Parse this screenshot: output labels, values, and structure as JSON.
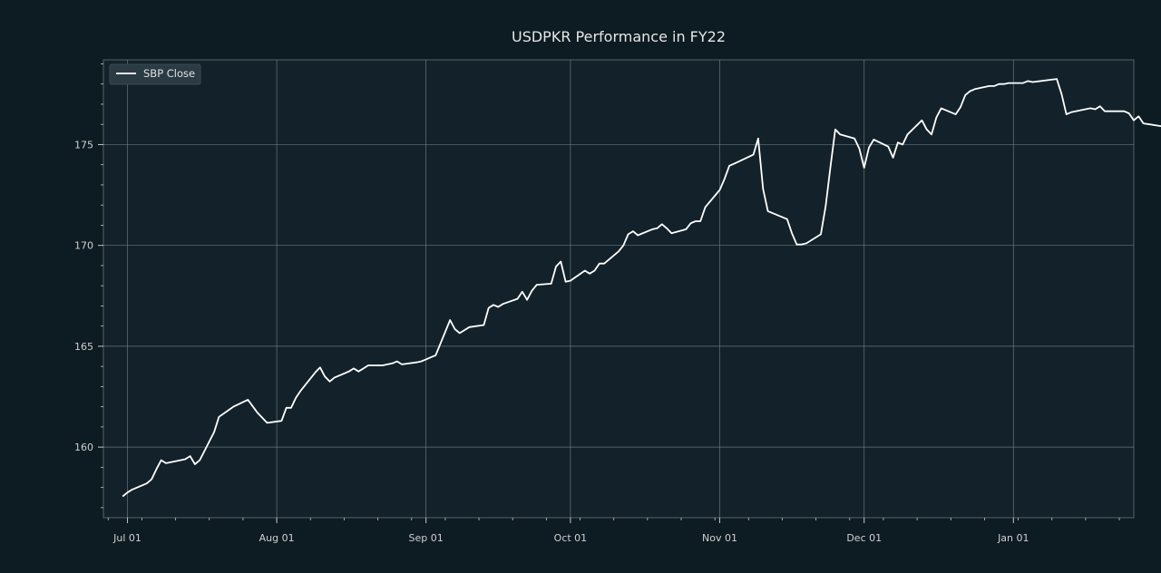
{
  "chart_data": {
    "type": "line",
    "title": "USDPKR Performance in FY22",
    "xlabel": "",
    "ylabel": "",
    "x_tick_labels": [
      "Jul 01",
      "Aug 01",
      "Sep 01",
      "Oct 01",
      "Nov 01",
      "Dec 01",
      "Jan 01"
    ],
    "x_tick_dates": [
      "2021-07-01",
      "2021-08-01",
      "2021-09-01",
      "2021-10-01",
      "2021-11-01",
      "2021-12-01",
      "2022-01-01"
    ],
    "y_ticks": [
      160,
      165,
      170,
      175
    ],
    "xlim": [
      "2021-06-26",
      "2022-01-26"
    ],
    "ylim": [
      156.5,
      179.2
    ],
    "grid": true,
    "legend_position": "top-left",
    "colors": {
      "line": "#ffffff",
      "grid": "#8a969c",
      "plot_bg": "#13222a",
      "page_bg": "#0d1b22"
    },
    "series": [
      {
        "name": "SBP Close",
        "points": [
          [
            "2021-06-30",
            157.55
          ],
          [
            "2021-07-01",
            157.75
          ],
          [
            "2021-07-02",
            157.9
          ],
          [
            "2021-07-05",
            158.2
          ],
          [
            "2021-07-06",
            158.4
          ],
          [
            "2021-07-07",
            158.9
          ],
          [
            "2021-07-08",
            159.35
          ],
          [
            "2021-07-09",
            159.2
          ],
          [
            "2021-07-12",
            159.35
          ],
          [
            "2021-07-13",
            159.4
          ],
          [
            "2021-07-14",
            159.55
          ],
          [
            "2021-07-15",
            159.15
          ],
          [
            "2021-07-16",
            159.35
          ],
          [
            "2021-07-19",
            160.75
          ],
          [
            "2021-07-20",
            161.5
          ],
          [
            "2021-07-23",
            162.0
          ],
          [
            "2021-07-26",
            162.35
          ],
          [
            "2021-07-28",
            161.7
          ],
          [
            "2021-07-30",
            161.2
          ],
          [
            "2021-08-02",
            161.3
          ],
          [
            "2021-08-03",
            161.95
          ],
          [
            "2021-08-04",
            161.95
          ],
          [
            "2021-08-05",
            162.45
          ],
          [
            "2021-08-06",
            162.8
          ],
          [
            "2021-08-09",
            163.7
          ],
          [
            "2021-08-10",
            163.95
          ],
          [
            "2021-08-11",
            163.5
          ],
          [
            "2021-08-12",
            163.25
          ],
          [
            "2021-08-13",
            163.45
          ],
          [
            "2021-08-16",
            163.75
          ],
          [
            "2021-08-17",
            163.9
          ],
          [
            "2021-08-18",
            163.75
          ],
          [
            "2021-08-19",
            163.9
          ],
          [
            "2021-08-20",
            164.05
          ],
          [
            "2021-08-23",
            164.05
          ],
          [
            "2021-08-24",
            164.1
          ],
          [
            "2021-08-25",
            164.15
          ],
          [
            "2021-08-26",
            164.25
          ],
          [
            "2021-08-27",
            164.1
          ],
          [
            "2021-08-30",
            164.2
          ],
          [
            "2021-08-31",
            164.25
          ],
          [
            "2021-09-01",
            164.35
          ],
          [
            "2021-09-02",
            164.45
          ],
          [
            "2021-09-03",
            164.55
          ],
          [
            "2021-09-06",
            166.3
          ],
          [
            "2021-09-07",
            165.85
          ],
          [
            "2021-09-08",
            165.65
          ],
          [
            "2021-09-09",
            165.8
          ],
          [
            "2021-09-10",
            165.95
          ],
          [
            "2021-09-13",
            166.05
          ],
          [
            "2021-09-14",
            166.9
          ],
          [
            "2021-09-15",
            167.05
          ],
          [
            "2021-09-16",
            166.95
          ],
          [
            "2021-09-17",
            167.1
          ],
          [
            "2021-09-20",
            167.35
          ],
          [
            "2021-09-21",
            167.7
          ],
          [
            "2021-09-22",
            167.3
          ],
          [
            "2021-09-23",
            167.75
          ],
          [
            "2021-09-24",
            168.05
          ],
          [
            "2021-09-27",
            168.1
          ],
          [
            "2021-09-28",
            168.95
          ],
          [
            "2021-09-29",
            169.2
          ],
          [
            "2021-09-30",
            168.2
          ],
          [
            "2021-10-01",
            168.25
          ],
          [
            "2021-10-04",
            168.75
          ],
          [
            "2021-10-05",
            168.6
          ],
          [
            "2021-10-06",
            168.75
          ],
          [
            "2021-10-07",
            169.1
          ],
          [
            "2021-10-08",
            169.1
          ],
          [
            "2021-10-11",
            169.7
          ],
          [
            "2021-10-12",
            170.0
          ],
          [
            "2021-10-13",
            170.55
          ],
          [
            "2021-10-14",
            170.7
          ],
          [
            "2021-10-15",
            170.5
          ],
          [
            "2021-10-18",
            170.8
          ],
          [
            "2021-10-19",
            170.85
          ],
          [
            "2021-10-20",
            171.05
          ],
          [
            "2021-10-21",
            170.85
          ],
          [
            "2021-10-22",
            170.6
          ],
          [
            "2021-10-25",
            170.8
          ],
          [
            "2021-10-26",
            171.1
          ],
          [
            "2021-10-27",
            171.2
          ],
          [
            "2021-10-28",
            171.2
          ],
          [
            "2021-10-29",
            171.9
          ],
          [
            "2021-11-01",
            172.75
          ],
          [
            "2021-11-02",
            173.3
          ],
          [
            "2021-11-03",
            173.95
          ],
          [
            "2021-11-04",
            174.05
          ],
          [
            "2021-11-08",
            174.5
          ],
          [
            "2021-11-09",
            175.3
          ],
          [
            "2021-11-10",
            172.8
          ],
          [
            "2021-11-11",
            171.7
          ],
          [
            "2021-11-15",
            171.3
          ],
          [
            "2021-11-16",
            170.6
          ],
          [
            "2021-11-17",
            170.05
          ],
          [
            "2021-11-18",
            170.05
          ],
          [
            "2021-11-19",
            170.1
          ],
          [
            "2021-11-22",
            170.55
          ],
          [
            "2021-11-23",
            171.95
          ],
          [
            "2021-11-24",
            173.9
          ],
          [
            "2021-11-25",
            175.75
          ],
          [
            "2021-11-26",
            175.5
          ],
          [
            "2021-11-29",
            175.3
          ],
          [
            "2021-11-30",
            174.8
          ],
          [
            "2021-12-01",
            173.85
          ],
          [
            "2021-12-02",
            174.85
          ],
          [
            "2021-12-03",
            175.25
          ],
          [
            "2021-12-06",
            174.9
          ],
          [
            "2021-12-07",
            174.35
          ],
          [
            "2021-12-08",
            175.1
          ],
          [
            "2021-12-09",
            175.0
          ],
          [
            "2021-12-10",
            175.5
          ],
          [
            "2021-12-13",
            176.2
          ],
          [
            "2021-12-14",
            175.75
          ],
          [
            "2021-12-15",
            175.5
          ],
          [
            "2021-12-16",
            176.35
          ],
          [
            "2021-12-17",
            176.8
          ],
          [
            "2021-12-20",
            176.5
          ],
          [
            "2021-12-21",
            176.85
          ],
          [
            "2021-12-22",
            177.45
          ],
          [
            "2021-12-23",
            177.65
          ],
          [
            "2021-12-24",
            177.75
          ],
          [
            "2021-12-27",
            177.9
          ],
          [
            "2021-12-28",
            177.9
          ],
          [
            "2021-12-29",
            178.0
          ],
          [
            "2021-12-30",
            178.0
          ],
          [
            "2021-12-31",
            178.05
          ],
          [
            "2022-01-03",
            178.05
          ],
          [
            "2022-01-04",
            178.15
          ],
          [
            "2022-01-05",
            178.1
          ],
          [
            "2022-01-10",
            178.25
          ],
          [
            "2022-01-11",
            177.5
          ],
          [
            "2022-01-12",
            176.5
          ],
          [
            "2022-01-13",
            176.6
          ],
          [
            "2022-01-17",
            176.8
          ],
          [
            "2022-01-18",
            176.75
          ],
          [
            "2022-01-19",
            176.9
          ],
          [
            "2022-01-20",
            176.65
          ],
          [
            "2022-01-24",
            176.65
          ],
          [
            "2022-01-25",
            176.55
          ],
          [
            "2022-01-26",
            176.2
          ],
          [
            "2022-01-27",
            176.4
          ],
          [
            "2022-01-28",
            176.05
          ],
          [
            "2022-02-01",
            175.9
          ]
        ]
      }
    ]
  }
}
